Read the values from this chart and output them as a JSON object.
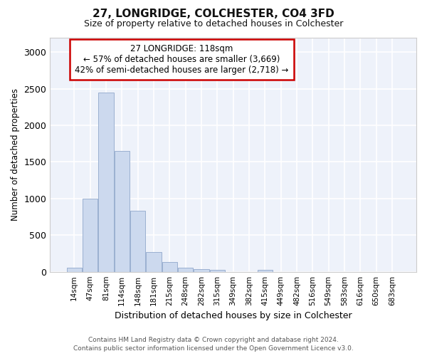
{
  "title": "27, LONGRIDGE, COLCHESTER, CO4 3FD",
  "subtitle": "Size of property relative to detached houses in Colchester",
  "xlabel": "Distribution of detached houses by size in Colchester",
  "ylabel": "Number of detached properties",
  "bar_color": "#ccd9ee",
  "bar_edge_color": "#9ab0d0",
  "annotation_text": "27 LONGRIDGE: 118sqm\n← 57% of detached houses are smaller (3,669)\n42% of semi-detached houses are larger (2,718) →",
  "annotation_box_facecolor": "#ffffff",
  "annotation_box_edgecolor": "#cc0000",
  "categories": [
    "14sqm",
    "47sqm",
    "81sqm",
    "114sqm",
    "148sqm",
    "181sqm",
    "215sqm",
    "248sqm",
    "282sqm",
    "315sqm",
    "349sqm",
    "382sqm",
    "415sqm",
    "449sqm",
    "482sqm",
    "516sqm",
    "549sqm",
    "583sqm",
    "616sqm",
    "650sqm",
    "683sqm"
  ],
  "values": [
    55,
    1000,
    2450,
    1650,
    830,
    270,
    130,
    55,
    35,
    25,
    0,
    0,
    30,
    0,
    0,
    0,
    0,
    0,
    0,
    0,
    0
  ],
  "ylim": [
    0,
    3200
  ],
  "yticks": [
    0,
    500,
    1000,
    1500,
    2000,
    2500,
    3000
  ],
  "footer_line1": "Contains HM Land Registry data © Crown copyright and database right 2024.",
  "footer_line2": "Contains public sector information licensed under the Open Government Licence v3.0.",
  "background_color": "#ffffff",
  "plot_bg_color": "#eef2fa",
  "grid_color": "#ffffff",
  "figsize": [
    6.0,
    5.0
  ],
  "dpi": 100
}
